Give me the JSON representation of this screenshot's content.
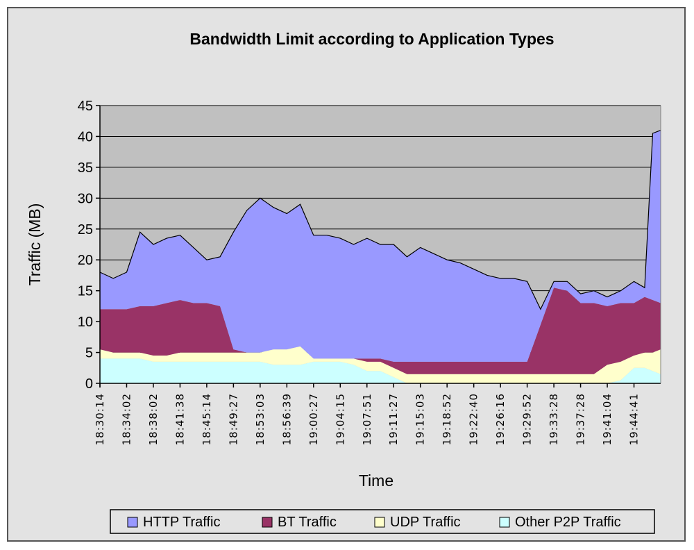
{
  "chart_data": {
    "type": "area",
    "stacked": true,
    "title": "Bandwidth Limit according to Application Types",
    "xlabel": "Time",
    "ylabel": "Traffic (MB)",
    "ylim": [
      0,
      45
    ],
    "yticks": [
      0,
      5,
      10,
      15,
      20,
      25,
      30,
      35,
      40,
      45
    ],
    "grid": true,
    "legend_position": "bottom",
    "tick_labels": [
      "18:30:14",
      "18:34:02",
      "18:38:02",
      "18:41:38",
      "18:45:14",
      "18:49:27",
      "18:53:03",
      "18:56:39",
      "19:00:27",
      "19:04:15",
      "19:07:51",
      "19:11:27",
      "19:15:03",
      "19:18:52",
      "19:22:40",
      "19:26:16",
      "19:29:52",
      "19:33:28",
      "19:37:28",
      "19:41:04",
      "19:44:41"
    ],
    "x": [
      0,
      0.5,
      1,
      1.5,
      2,
      2.5,
      3,
      3.5,
      4,
      4.5,
      5,
      5.5,
      6,
      6.5,
      7,
      7.5,
      8,
      8.5,
      9,
      9.5,
      10,
      10.5,
      11,
      11.5,
      12,
      12.5,
      13,
      13.5,
      14,
      14.5,
      15,
      15.5,
      16,
      16.5,
      17,
      17.5,
      18,
      18.5,
      19,
      19.5,
      20,
      20.4,
      20.7,
      21
    ],
    "series": [
      {
        "name": "Other P2P Traffic",
        "color": "#ccffff",
        "values": [
          4,
          4,
          4,
          4,
          3.5,
          3.5,
          3.5,
          3.5,
          3.5,
          3.5,
          3.5,
          3.5,
          3.5,
          3,
          3,
          3,
          3.5,
          3.5,
          3.5,
          3,
          2,
          2,
          1,
          0,
          0,
          0,
          0,
          0,
          0,
          0,
          0,
          0,
          0,
          0,
          0,
          0,
          0,
          0,
          0,
          0.5,
          2.5,
          2.5,
          2,
          1.5
        ]
      },
      {
        "name": "UDP Traffic",
        "color": "#ffffcc",
        "values": [
          1.5,
          1,
          1,
          1,
          1,
          1,
          1.5,
          1.5,
          1.5,
          1.5,
          1.5,
          1.5,
          1.5,
          2.5,
          2.5,
          3,
          0.5,
          0.5,
          0.5,
          1,
          1.5,
          1.5,
          1.5,
          1.5,
          1.5,
          1.5,
          1.5,
          1.5,
          1.5,
          1.5,
          1.5,
          1.5,
          1.5,
          1.5,
          1.5,
          1.5,
          1.5,
          1.5,
          3,
          3,
          2,
          2.5,
          3,
          4
        ]
      },
      {
        "name": "BT Traffic",
        "color": "#993366",
        "values": [
          6.5,
          7,
          7,
          7.5,
          8,
          8.5,
          8.5,
          8,
          8,
          7.5,
          0.5,
          0,
          0,
          0,
          0,
          0,
          0,
          0,
          0,
          0,
          0.5,
          0.5,
          1,
          2,
          2,
          2,
          2,
          2,
          2,
          2,
          2,
          2,
          2,
          8,
          14,
          13.5,
          11.5,
          11.5,
          9.5,
          9.5,
          8.5,
          9,
          8.5,
          7.5
        ]
      },
      {
        "name": "HTTP Traffic",
        "color": "#9999ff",
        "values": [
          6,
          5,
          6,
          12,
          10,
          10.5,
          10.5,
          9,
          7,
          8,
          19,
          23,
          25,
          23,
          22,
          23,
          20,
          20,
          19.5,
          18.5,
          19.5,
          18.5,
          19,
          17,
          18.5,
          17.5,
          16.5,
          16,
          15,
          14,
          13.5,
          13.5,
          13,
          2.5,
          1,
          1.5,
          1.5,
          2,
          1.5,
          2,
          3.5,
          1.5,
          27,
          28
        ]
      }
    ]
  },
  "legend": {
    "items": [
      {
        "label": "HTTP Traffic",
        "color": "#9999ff"
      },
      {
        "label": "BT Traffic",
        "color": "#993366"
      },
      {
        "label": "UDP Traffic",
        "color": "#ffffcc"
      },
      {
        "label": "Other P2P Traffic",
        "color": "#ccffff"
      }
    ]
  }
}
